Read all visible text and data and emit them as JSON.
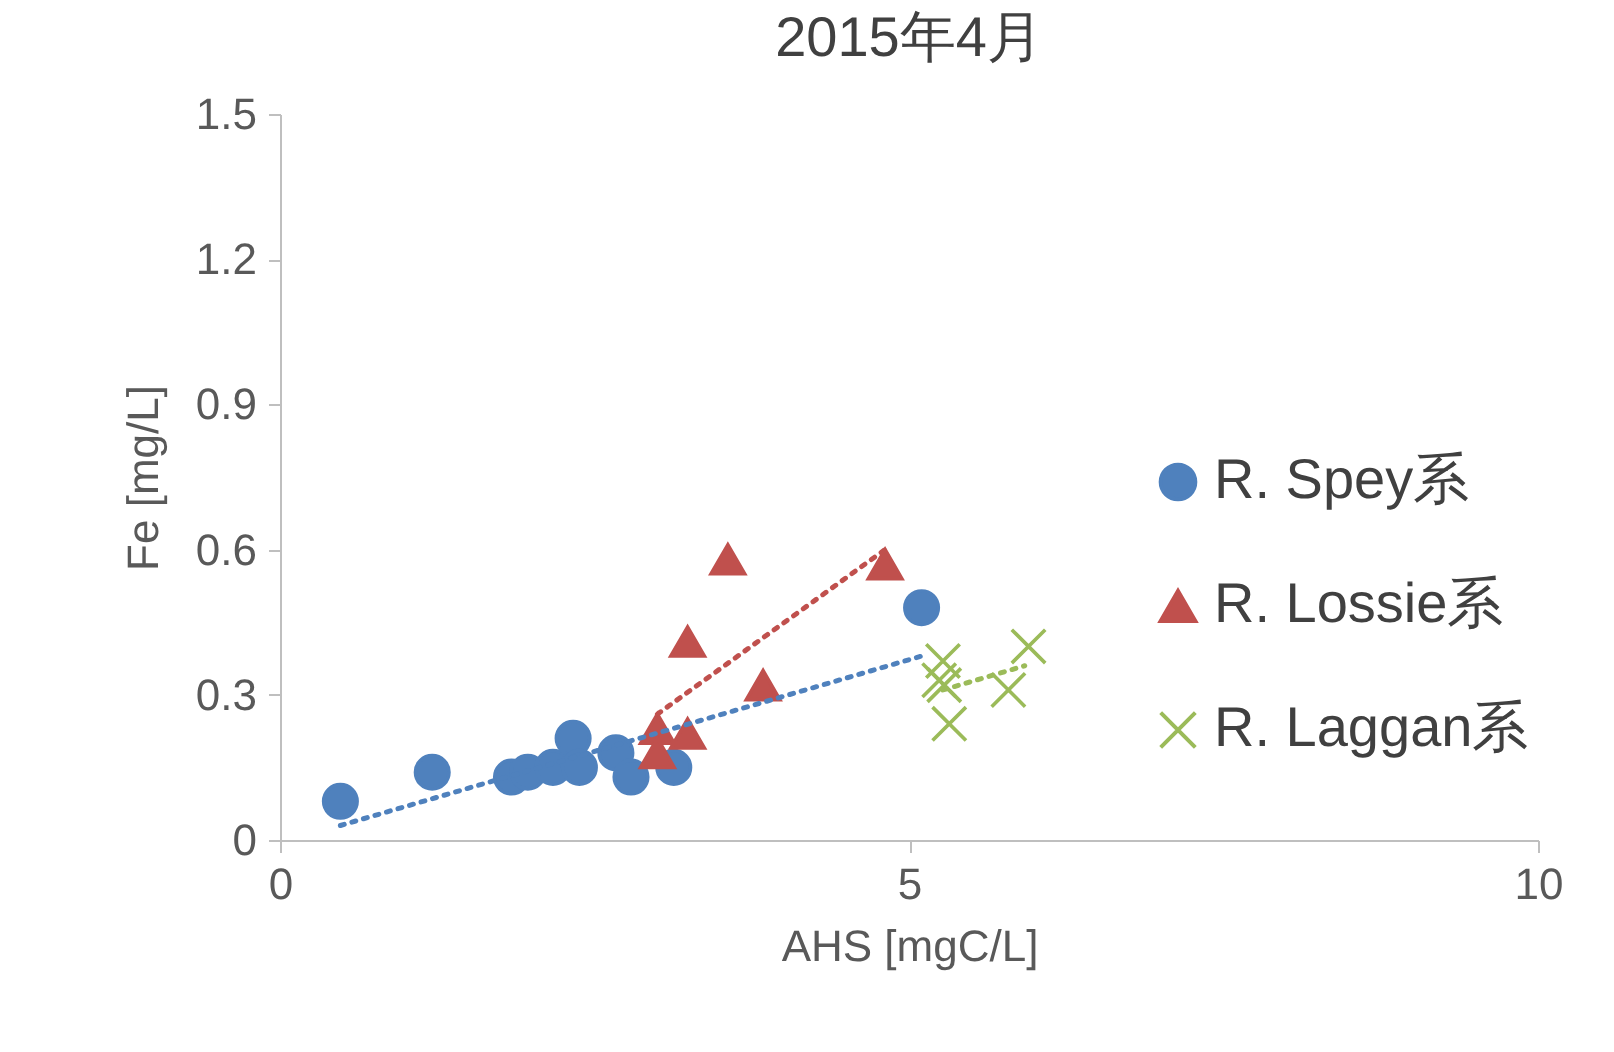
{
  "chart_data": {
    "type": "scatter",
    "title": "2015年4月",
    "xlabel": "AHS [mgC/L]",
    "ylabel": "Fe [mg/L]",
    "xlim": [
      0,
      10
    ],
    "xticks": [
      0,
      5,
      10
    ],
    "ylim": [
      0,
      1.5
    ],
    "yticks": [
      0,
      0.3,
      0.6,
      0.9,
      1.2,
      1.5
    ],
    "grid": false,
    "legend": "right",
    "series": [
      {
        "name": "R. Spey系",
        "color": "#4f81bd",
        "marker": "circle",
        "x": [
          0.48,
          1.21,
          1.84,
          1.97,
          2.17,
          2.33,
          2.38,
          2.67,
          2.79,
          3.13,
          5.1
        ],
        "values": [
          0.08,
          0.14,
          0.13,
          0.14,
          0.15,
          0.21,
          0.15,
          0.18,
          0.13,
          0.15,
          0.48
        ]
      },
      {
        "name": "R. Lossie系",
        "color": "#c0504d",
        "marker": "triangle",
        "x": [
          3.0,
          3.0,
          3.24,
          3.24,
          3.56,
          3.84,
          4.81
        ],
        "values": [
          0.23,
          0.18,
          0.22,
          0.41,
          0.58,
          0.32,
          0.57
        ]
      },
      {
        "name": "R. Laggan系",
        "color": "#9bbb59",
        "marker": "cross",
        "x": [
          5.27,
          5.24,
          5.28,
          5.32,
          5.79,
          5.95
        ],
        "values": [
          0.37,
          0.33,
          0.32,
          0.24,
          0.31,
          0.4
        ]
      },
      {
        "type": "line",
        "color": "#4f81bd",
        "line_style": "dotted",
        "marker": "none",
        "x": [
          0.48,
          5.1
        ],
        "values": [
          0.03,
          0.38
        ]
      },
      {
        "type": "line",
        "color": "#c0504d",
        "line_style": "dotted",
        "marker": "none",
        "x": [
          3.0,
          4.81
        ],
        "values": [
          0.26,
          0.6
        ]
      },
      {
        "type": "line",
        "color": "#9bbb59",
        "line_style": "dotted",
        "marker": "none",
        "x": [
          5.27,
          5.92
        ],
        "values": [
          0.31,
          0.36
        ]
      }
    ]
  }
}
